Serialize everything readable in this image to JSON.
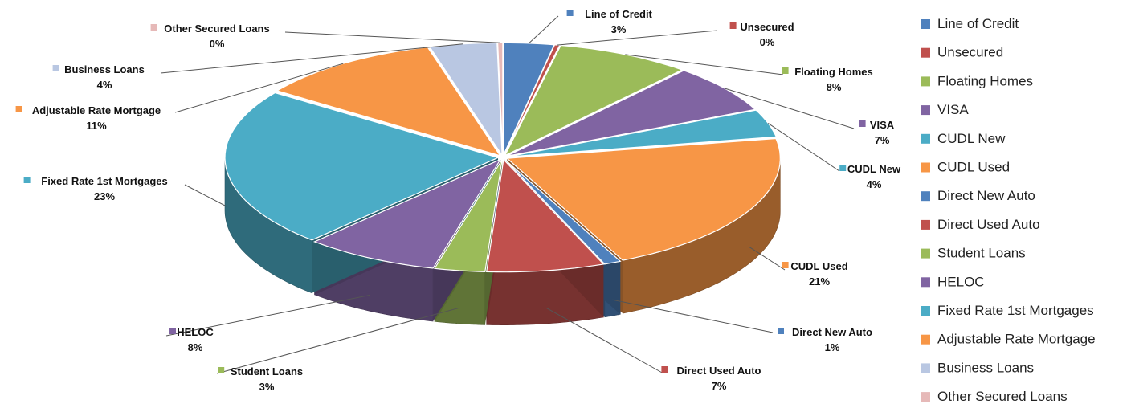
{
  "chart_data": {
    "type": "pie",
    "title": "",
    "style": "3d-exploded",
    "legend_position": "right",
    "slices": [
      {
        "name": "Line of Credit",
        "value": 3,
        "label": "3%",
        "color": "#4f81bd"
      },
      {
        "name": "Unsecured",
        "value": 0.3,
        "label": "0%",
        "color": "#c0504d"
      },
      {
        "name": "Floating Homes",
        "value": 8,
        "label": "8%",
        "color": "#9bbb59"
      },
      {
        "name": "VISA",
        "value": 7,
        "label": "7%",
        "color": "#8064a2"
      },
      {
        "name": "CUDL New",
        "value": 4,
        "label": "4%",
        "color": "#4bacc6"
      },
      {
        "name": "CUDL Used",
        "value": 21,
        "label": "21%",
        "color": "#f79646"
      },
      {
        "name": "Direct New Auto",
        "value": 1,
        "label": "1%",
        "color": "#4f81bd"
      },
      {
        "name": "Direct Used Auto",
        "value": 7,
        "label": "7%",
        "color": "#c0504d"
      },
      {
        "name": "Student Loans",
        "value": 3,
        "label": "3%",
        "color": "#9bbb59"
      },
      {
        "name": "HELOC",
        "value": 8,
        "label": "8%",
        "color": "#8064a2"
      },
      {
        "name": "Fixed Rate 1st Mortgages",
        "value": 23,
        "label": "23%",
        "color": "#4bacc6"
      },
      {
        "name": "Adjustable Rate Mortgage",
        "value": 11,
        "label": "11%",
        "color": "#f79646"
      },
      {
        "name": "Business Loans",
        "value": 4,
        "label": "4%",
        "color": "#b9c7e2"
      },
      {
        "name": "Other Secured Loans",
        "value": 0.3,
        "label": "0%",
        "color": "#e6b9b8"
      }
    ]
  }
}
